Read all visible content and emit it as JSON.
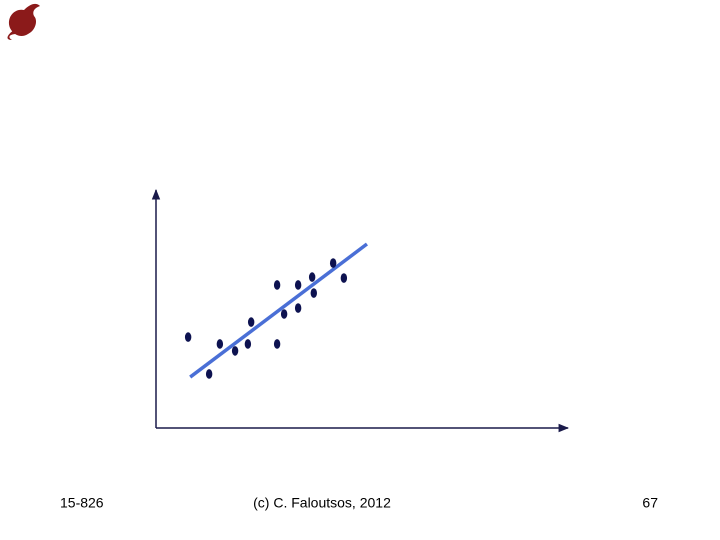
{
  "chart_data": {
    "type": "scatter",
    "x": [
      7.8,
      12.9,
      15.5,
      19.2,
      22.3,
      23.1,
      29.4,
      29.4,
      31.1,
      34.5,
      34.5,
      37.9,
      38.3,
      43.0,
      45.6
    ],
    "y": [
      38.2,
      22.7,
      35.3,
      32.4,
      35.3,
      44.5,
      60.1,
      35.3,
      47.9,
      60.1,
      50.4,
      63.4,
      56.7,
      69.3,
      63.0
    ],
    "color": "#0d1250",
    "fit_line": {
      "x": [
        8.3,
        51.2
      ],
      "y": [
        21.4,
        77.3
      ],
      "color": "#4a6fd6"
    },
    "xlim": [
      0,
      100
    ],
    "ylim": [
      0,
      100
    ]
  },
  "footer": {
    "left": "15-826",
    "center": "(c) C. Faloutsos, 2012",
    "right": "67"
  }
}
